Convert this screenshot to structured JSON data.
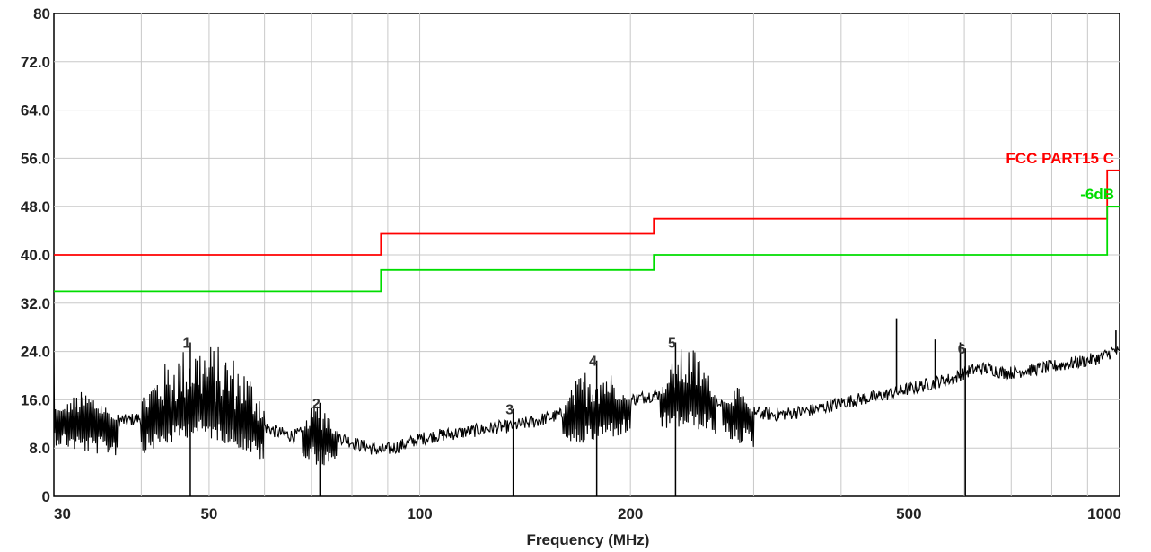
{
  "chart_data": {
    "type": "line",
    "xlabel": "Frequency (MHz)",
    "ylabel": "",
    "xscale": "log",
    "xlim": [
      30,
      1000
    ],
    "ylim": [
      0,
      80
    ],
    "grid": true,
    "y_ticks": [
      {
        "value": 0,
        "label": "0"
      },
      {
        "value": 8,
        "label": "8.0"
      },
      {
        "value": 16,
        "label": "16.0"
      },
      {
        "value": 24,
        "label": "24.0"
      },
      {
        "value": 32,
        "label": "32.0"
      },
      {
        "value": 40,
        "label": "40.0"
      },
      {
        "value": 48,
        "label": "48.0"
      },
      {
        "value": 56,
        "label": "56.0"
      },
      {
        "value": 64,
        "label": "64.0"
      },
      {
        "value": 72,
        "label": "72.0"
      },
      {
        "value": 80,
        "label": "80"
      }
    ],
    "x_ticks": [
      {
        "value": 30,
        "label": "30"
      },
      {
        "value": 50,
        "label": "50"
      },
      {
        "value": 100,
        "label": "100"
      },
      {
        "value": 200,
        "label": "200"
      },
      {
        "value": 500,
        "label": "500"
      },
      {
        "value": 1000,
        "label": "1000"
      }
    ],
    "x_minor_gridlines": [
      40,
      60,
      70,
      80,
      90,
      300,
      400,
      600,
      700,
      800,
      900
    ],
    "limits": [
      {
        "name": "FCC PART15 C",
        "color": "#ff0000",
        "x": [
          30,
          88,
          88,
          216,
          216,
          960,
          960,
          1000
        ],
        "y": [
          40,
          40,
          43.5,
          43.5,
          46,
          46,
          54,
          54
        ]
      },
      {
        "name": "-6dB",
        "color": "#00dd00",
        "x": [
          30,
          88,
          88,
          216,
          216,
          960,
          960,
          1000
        ],
        "y": [
          34,
          34,
          37.5,
          37.5,
          40,
          40,
          48,
          48
        ]
      }
    ],
    "trace": {
      "color": "#000000",
      "x": [
        30,
        32,
        34,
        36,
        38,
        40,
        42,
        44,
        46,
        47.5,
        50,
        52,
        55,
        58,
        60,
        63,
        66,
        68,
        70,
        72,
        74,
        76,
        78,
        80,
        82,
        85,
        88,
        90,
        93,
        96,
        100,
        105,
        110,
        115,
        120,
        125,
        130,
        135,
        140,
        145,
        150,
        155,
        160,
        165,
        170,
        178,
        185,
        190,
        200,
        210,
        216,
        225,
        232,
        240,
        250,
        260,
        270,
        280,
        290,
        300,
        320,
        340,
        360,
        380,
        400,
        420,
        450,
        470,
        480,
        490,
        510,
        530,
        545,
        550,
        580,
        600,
        620,
        640,
        660,
        680,
        700,
        750,
        800,
        850,
        900,
        940,
        960,
        975,
        990,
        1000
      ],
      "y": [
        14.5,
        13.5,
        13,
        12.8,
        12.5,
        13,
        13.8,
        14.5,
        15.5,
        16,
        15.5,
        15,
        14,
        12.5,
        11.5,
        10.5,
        10,
        10.5,
        11.5,
        11,
        10.5,
        10,
        9.5,
        9,
        8.5,
        8,
        7.6,
        7.8,
        8.2,
        8.8,
        9.5,
        10,
        10.3,
        10.6,
        10.9,
        11.2,
        11.5,
        11.6,
        12,
        12.3,
        12.8,
        13.2,
        13.6,
        14,
        14.5,
        15,
        15.5,
        15.8,
        16,
        16.5,
        16.8,
        17,
        17.2,
        17.3,
        17,
        16.5,
        15.8,
        15,
        14.5,
        14,
        13.5,
        13.8,
        14.2,
        14.8,
        15.5,
        16,
        16.5,
        17,
        17.2,
        17.6,
        18,
        18.5,
        18.8,
        19,
        19.5,
        20.5,
        21,
        21.2,
        21,
        20.5,
        20.5,
        21,
        21.5,
        22,
        22.5,
        23,
        23.5,
        24,
        24,
        23.5
      ],
      "envelopes": [
        {
          "x0": 30,
          "x1": 37,
          "high": 17.5
        },
        {
          "x0": 40,
          "x1": 60,
          "high": 25.5
        },
        {
          "x0": 68,
          "x1": 76,
          "high": 16
        },
        {
          "x0": 160,
          "x1": 200,
          "high": 22
        },
        {
          "x0": 220,
          "x1": 265,
          "high": 25
        },
        {
          "x0": 270,
          "x1": 300,
          "high": 18
        }
      ],
      "spikes": [
        {
          "x": 480,
          "y": 29.5
        },
        {
          "x": 545,
          "y": 26
        },
        {
          "x": 592,
          "y": 25.5
        },
        {
          "x": 988,
          "y": 27.5
        }
      ]
    },
    "markers": [
      {
        "label": "1",
        "x": 47,
        "y": 25.5
      },
      {
        "label": "2",
        "x": 72,
        "y": 15.5
      },
      {
        "label": "3",
        "x": 136,
        "y": 14.5
      },
      {
        "label": "4",
        "x": 179,
        "y": 22.5
      },
      {
        "label": "5",
        "x": 232,
        "y": 25.5
      },
      {
        "label": "6",
        "x": 602,
        "y": 24.5
      }
    ]
  }
}
